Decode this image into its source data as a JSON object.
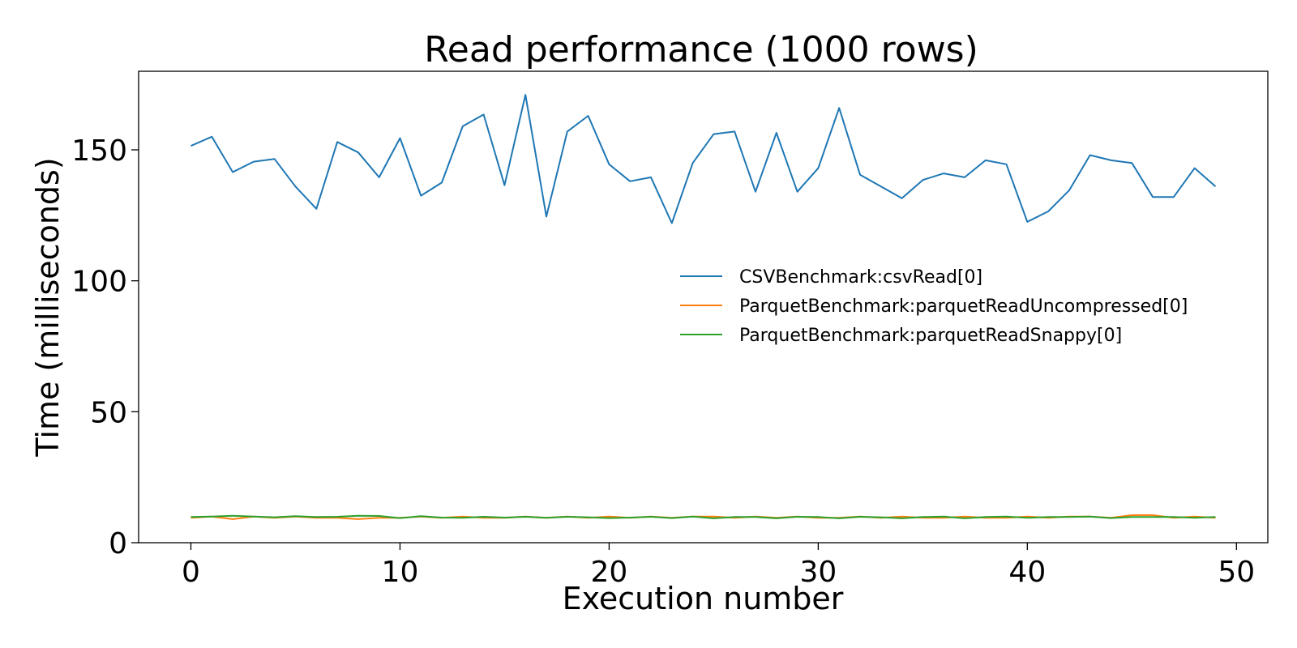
{
  "chart_data": {
    "type": "line",
    "title": "Read performance (1000 rows)",
    "xlabel": "Execution number",
    "ylabel": "Time (milliseconds)",
    "xlim": [
      -2.5,
      51.5
    ],
    "ylim": [
      0,
      180
    ],
    "xticks": [
      0,
      10,
      20,
      30,
      40,
      50
    ],
    "yticks": [
      0,
      50,
      100,
      150
    ],
    "grid": false,
    "legend_position": "center-right",
    "x": [
      0,
      1,
      2,
      3,
      4,
      5,
      6,
      7,
      8,
      9,
      10,
      11,
      12,
      13,
      14,
      15,
      16,
      17,
      18,
      19,
      20,
      21,
      22,
      23,
      24,
      25,
      26,
      27,
      28,
      29,
      30,
      31,
      32,
      33,
      34,
      35,
      36,
      37,
      38,
      39,
      40,
      41,
      42,
      43,
      44,
      45,
      46,
      47,
      48,
      49
    ],
    "series": [
      {
        "name": "CSVBenchmark:csvRead[0]",
        "color": "#1f77b4",
        "values": [
          151.5,
          155.0,
          141.5,
          145.5,
          146.5,
          136.0,
          127.5,
          153.0,
          149.0,
          139.5,
          154.5,
          132.5,
          137.5,
          159.0,
          163.5,
          136.5,
          171.0,
          124.5,
          157.0,
          163.0,
          144.5,
          138.0,
          139.5,
          122.0,
          145.0,
          156.0,
          157.0,
          134.0,
          156.5,
          134.0,
          143.0,
          166.0,
          140.5,
          136.0,
          131.5,
          138.5,
          141.0,
          139.5,
          146.0,
          144.5,
          122.5,
          126.5,
          134.5,
          148.0,
          146.0,
          145.0,
          132.0,
          132.0,
          143.0,
          136.0
        ]
      },
      {
        "name": "ParquetBenchmark:parquetReadUncompressed[0]",
        "color": "#ff7f0e",
        "values": [
          9.5,
          10.0,
          9.0,
          10.0,
          9.5,
          10.0,
          9.5,
          9.5,
          9.0,
          9.5,
          9.5,
          10.0,
          9.5,
          10.0,
          9.5,
          9.5,
          10.0,
          9.5,
          10.0,
          9.5,
          10.0,
          9.5,
          10.0,
          9.5,
          10.0,
          10.0,
          9.5,
          10.0,
          9.5,
          10.0,
          9.5,
          9.5,
          10.0,
          9.5,
          10.0,
          9.5,
          9.5,
          10.0,
          9.5,
          9.5,
          10.0,
          9.5,
          10.0,
          10.0,
          9.5,
          10.5,
          10.5,
          9.5,
          10.0,
          9.5
        ]
      },
      {
        "name": "ParquetBenchmark:parquetReadSnappy[0]",
        "color": "#2ca02c",
        "values": [
          9.8,
          10.0,
          10.3,
          10.0,
          9.7,
          10.1,
          9.8,
          9.9,
          10.3,
          10.2,
          9.4,
          10.1,
          9.6,
          9.5,
          9.9,
          9.6,
          9.9,
          9.5,
          9.9,
          9.7,
          9.4,
          9.6,
          9.9,
          9.4,
          10.0,
          9.3,
          9.8,
          9.8,
          9.3,
          9.9,
          9.8,
          9.3,
          9.9,
          9.7,
          9.3,
          9.8,
          10.0,
          9.3,
          9.8,
          10.0,
          9.5,
          9.8,
          9.8,
          10.0,
          9.4,
          9.8,
          9.8,
          9.8,
          9.5,
          9.8
        ]
      }
    ]
  }
}
